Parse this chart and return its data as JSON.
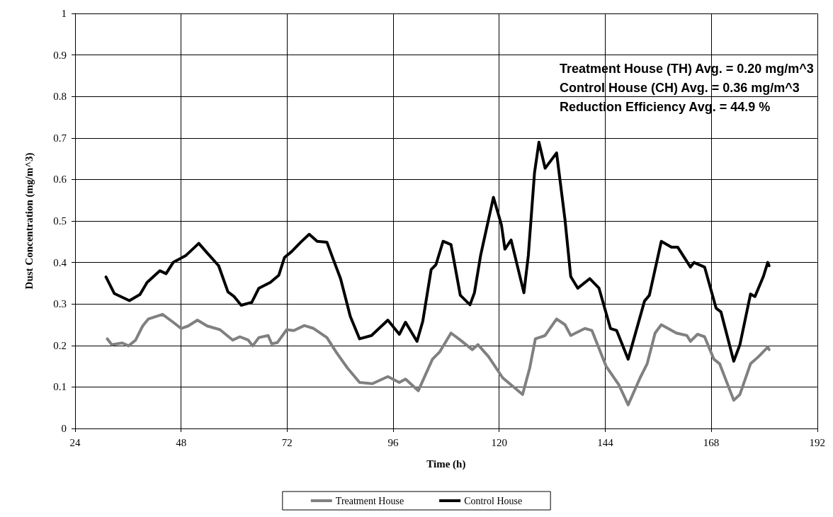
{
  "chart_data": {
    "type": "line",
    "xlabel": "Time (h)",
    "ylabel": "Dust Concentration (mg/m^3)",
    "xlim": [
      24,
      192
    ],
    "xticks": [
      24,
      48,
      72,
      96,
      120,
      144,
      168,
      192
    ],
    "ylim": [
      0,
      1
    ],
    "yticks": [
      0,
      0.1,
      0.2,
      0.3,
      0.4,
      0.5,
      0.6,
      0.7,
      0.8,
      0.9,
      1
    ],
    "grid": true,
    "legend": "bottom",
    "marker": "none",
    "line_style": "solid",
    "annotations": [
      "Treatment House (TH) Avg. = 0.20 mg/m^3",
      "Control House (CH) Avg. = 0.36 mg/m^3",
      "Reduction Efficiency Avg. = 44.9 %"
    ],
    "series": [
      {
        "name": "Treatment House",
        "color": "#808080",
        "x": [
          31.3,
          32.3,
          34.7,
          36.1,
          37.7,
          39.3,
          40.6,
          43.8,
          46.2,
          48.0,
          49.6,
          51.7,
          53.9,
          56.8,
          59.7,
          61.3,
          63.2,
          64.2,
          65.6,
          67.7,
          68.5,
          69.8,
          71.9,
          73.5,
          75.9,
          78.0,
          81.0,
          83.1,
          85.7,
          88.4,
          91.3,
          94.8,
          97.4,
          98.8,
          101.7,
          104.9,
          106.5,
          109.1,
          111.2,
          113.9,
          115.2,
          117.6,
          120.8,
          125.3,
          126.9,
          128.2,
          130.4,
          133.0,
          134.9,
          136.2,
          139.4,
          141.0,
          144.2,
          147.1,
          149.2,
          151.9,
          153.5,
          155.3,
          156.7,
          160.1,
          162.5,
          163.3,
          164.9,
          166.5,
          168.6,
          169.9,
          173.1,
          174.5,
          176.9,
          178.7,
          180.8,
          181.1
        ],
        "values": [
          0.216,
          0.202,
          0.206,
          0.199,
          0.213,
          0.247,
          0.264,
          0.275,
          0.256,
          0.241,
          0.247,
          0.261,
          0.247,
          0.238,
          0.213,
          0.221,
          0.213,
          0.199,
          0.219,
          0.224,
          0.204,
          0.207,
          0.238,
          0.236,
          0.248,
          0.241,
          0.219,
          0.184,
          0.145,
          0.111,
          0.108,
          0.125,
          0.111,
          0.119,
          0.091,
          0.167,
          0.184,
          0.23,
          0.213,
          0.19,
          0.202,
          0.173,
          0.122,
          0.082,
          0.145,
          0.216,
          0.224,
          0.264,
          0.25,
          0.224,
          0.241,
          0.236,
          0.15,
          0.105,
          0.057,
          0.122,
          0.156,
          0.23,
          0.25,
          0.23,
          0.224,
          0.21,
          0.227,
          0.221,
          0.167,
          0.156,
          0.068,
          0.082,
          0.156,
          0.173,
          0.196,
          0.19
        ]
      },
      {
        "name": "Control House",
        "color": "#000000",
        "x": [
          31.0,
          32.9,
          36.3,
          38.7,
          40.3,
          43.2,
          44.6,
          46.2,
          49.1,
          52.0,
          53.9,
          56.5,
          58.6,
          60.0,
          61.6,
          64.0,
          65.6,
          68.2,
          70.1,
          71.4,
          73.0,
          75.1,
          77.0,
          78.8,
          81.0,
          82.5,
          84.1,
          86.3,
          88.4,
          91.1,
          94.8,
          97.4,
          98.8,
          101.4,
          102.7,
          104.6,
          105.7,
          107.3,
          109.1,
          111.2,
          113.4,
          114.4,
          115.8,
          117.1,
          118.7,
          120.5,
          121.3,
          122.7,
          125.6,
          126.6,
          128.0,
          129.0,
          130.4,
          133.0,
          134.9,
          136.2,
          137.8,
          140.5,
          142.6,
          145.2,
          146.6,
          149.2,
          152.9,
          154.0,
          156.7,
          159.0,
          160.4,
          163.3,
          164.1,
          166.5,
          169.1,
          170.2,
          173.1,
          174.5,
          176.9,
          177.9,
          179.8,
          180.8,
          181.1
        ],
        "values": [
          0.365,
          0.325,
          0.308,
          0.323,
          0.352,
          0.38,
          0.373,
          0.4,
          0.417,
          0.446,
          0.423,
          0.392,
          0.329,
          0.318,
          0.297,
          0.304,
          0.338,
          0.352,
          0.369,
          0.412,
          0.426,
          0.449,
          0.468,
          0.451,
          0.449,
          0.406,
          0.361,
          0.27,
          0.216,
          0.224,
          0.261,
          0.227,
          0.256,
          0.21,
          0.258,
          0.383,
          0.395,
          0.451,
          0.443,
          0.321,
          0.298,
          0.327,
          0.417,
          0.48,
          0.557,
          0.491,
          0.432,
          0.454,
          0.327,
          0.417,
          0.616,
          0.69,
          0.627,
          0.664,
          0.503,
          0.366,
          0.338,
          0.361,
          0.338,
          0.241,
          0.236,
          0.167,
          0.307,
          0.321,
          0.451,
          0.437,
          0.437,
          0.389,
          0.4,
          0.389,
          0.29,
          0.281,
          0.162,
          0.202,
          0.324,
          0.318,
          0.366,
          0.4,
          0.392
        ]
      }
    ]
  }
}
